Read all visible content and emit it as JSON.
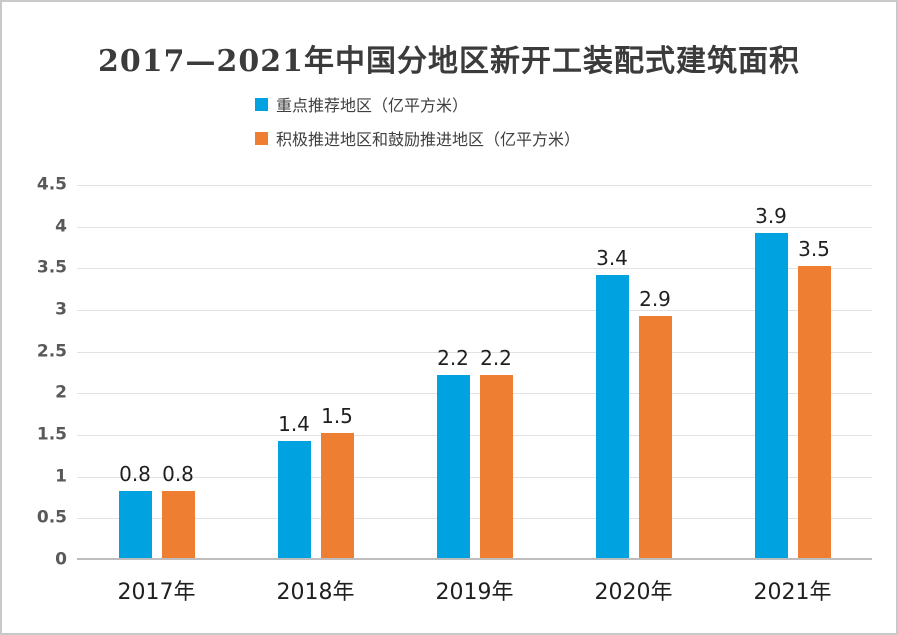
{
  "chart_data": {
    "type": "bar",
    "title": "2017—2021年中国分地区新开工装配式建筑面积",
    "categories": [
      "2017年",
      "2018年",
      "2019年",
      "2020年",
      "2021年"
    ],
    "series": [
      {
        "name": "重点推荐地区（亿平方米）",
        "color": "#00A3E0",
        "values": [
          0.8,
          1.4,
          2.2,
          3.4,
          3.9
        ],
        "labels": [
          "0.8",
          "1.4",
          "2.2",
          "3.4",
          "3.9"
        ]
      },
      {
        "name": "积极推进地区和鼓励推进地区（亿平方米）",
        "color": "#EE7E31",
        "values": [
          0.8,
          1.5,
          2.2,
          2.9,
          3.5
        ],
        "labels": [
          "0.8",
          "1.5",
          "2.2",
          "2.9",
          "3.5"
        ]
      }
    ],
    "xlabel": "",
    "ylabel": "",
    "ylim": [
      0,
      4.5
    ],
    "yticks": [
      {
        "value": 0,
        "label": "0"
      },
      {
        "value": 0.5,
        "label": "0.5"
      },
      {
        "value": 1,
        "label": "1"
      },
      {
        "value": 1.5,
        "label": "1.5"
      },
      {
        "value": 2,
        "label": "2"
      },
      {
        "value": 2.5,
        "label": "2.5"
      },
      {
        "value": 3,
        "label": "3"
      },
      {
        "value": 3.5,
        "label": "3.5"
      },
      {
        "value": 4,
        "label": "4"
      },
      {
        "value": 4.5,
        "label": "4.5"
      }
    ],
    "grid": true,
    "legend_position": "top"
  },
  "colors": {
    "series1": "#00A3E0",
    "series2": "#EE7E31",
    "gridline": "#E2E2E2",
    "axis_line": "#BDBDBD",
    "title_text": "#3B3B3B",
    "tick_text": "#595959",
    "label_text": "#1F1F1F",
    "frame_border": "#C9C9C9",
    "background": "#FFFFFF"
  }
}
